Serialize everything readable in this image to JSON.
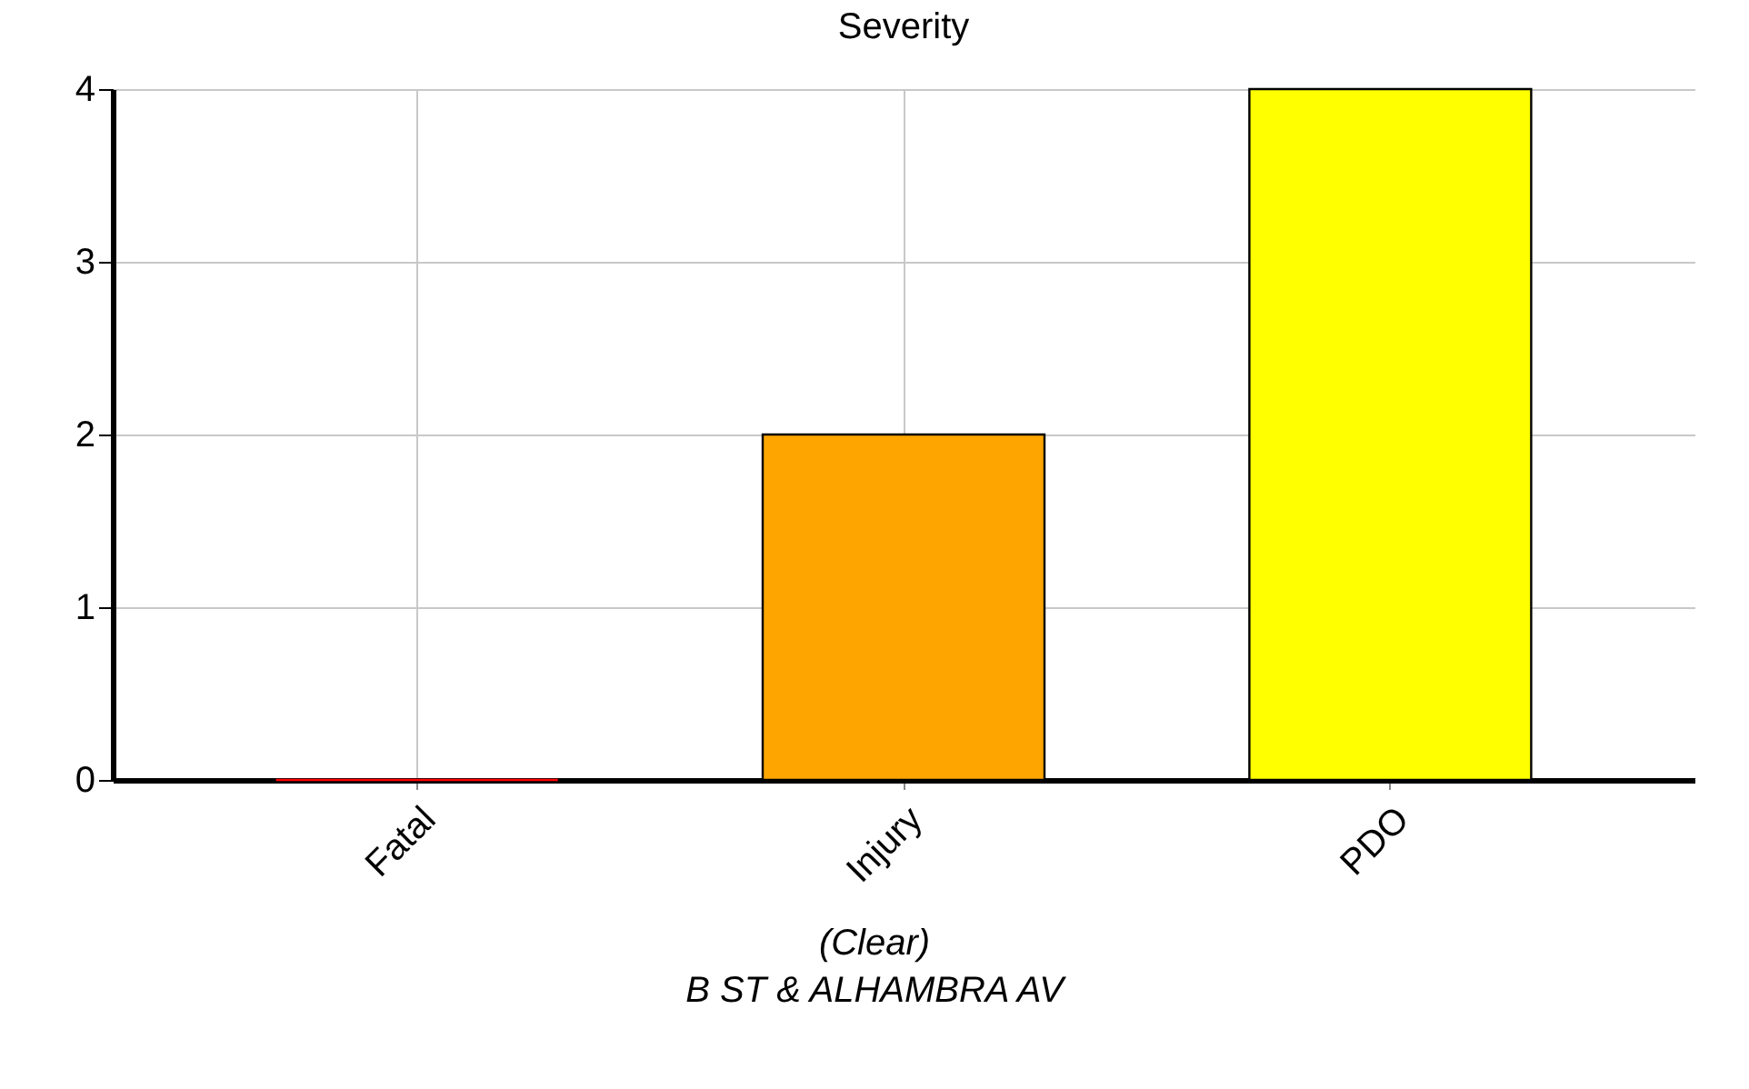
{
  "chart_data": {
    "type": "bar",
    "title": "Severity",
    "categories": [
      "Fatal",
      "Injury",
      "PDO"
    ],
    "values": [
      0,
      2,
      4
    ],
    "colors": [
      "#ff0000",
      "#ffa500",
      "#ffff00"
    ],
    "ylim": [
      0,
      4
    ],
    "yticks": [
      0,
      1,
      2,
      3,
      4
    ],
    "grid": true,
    "annotations": [
      "(Clear)",
      "B ST & ALHAMBRA AV"
    ]
  }
}
